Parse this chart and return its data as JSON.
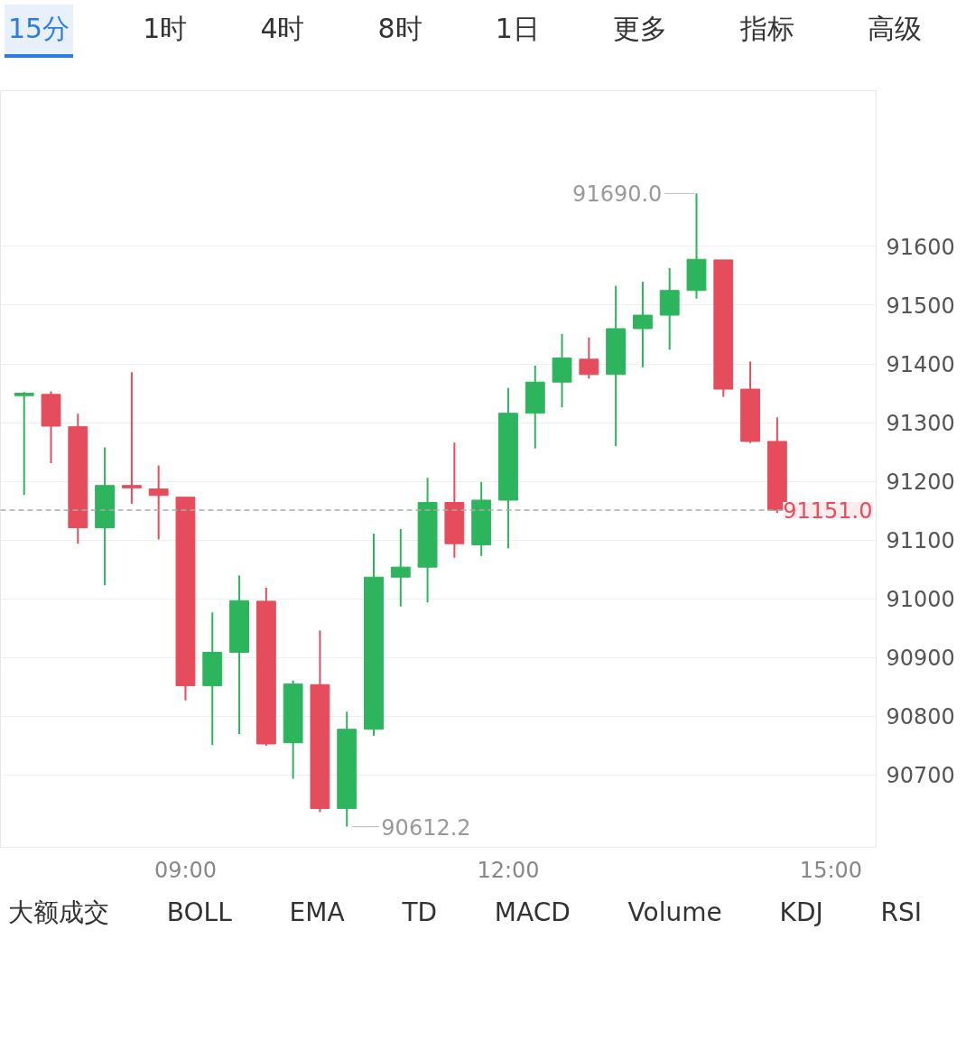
{
  "chart_data": {
    "type": "candlestick",
    "x": [
      7.5,
      7.75,
      8,
      8.25,
      8.5,
      8.75,
      9,
      9.25,
      9.5,
      9.75,
      10,
      10.25,
      10.5,
      10.75,
      11,
      11.25,
      11.5,
      11.75,
      12,
      12.25,
      12.5,
      12.75,
      13,
      13.25,
      13.5,
      13.75,
      14,
      14.25,
      14.5
    ],
    "ohlc": [
      [
        91346,
        91352,
        91177,
        91350
      ],
      [
        91348,
        91353,
        91231,
        91294
      ],
      [
        91293,
        91315,
        91094,
        91121
      ],
      [
        91121,
        91258,
        91023,
        91193
      ],
      [
        91193,
        91386,
        91162,
        91189
      ],
      [
        91187,
        91227,
        91101,
        91176
      ],
      [
        91173,
        91173,
        90827,
        90852
      ],
      [
        90852,
        90977,
        90751,
        90909
      ],
      [
        90909,
        91040,
        90770,
        90997
      ],
      [
        90996,
        91019,
        90750,
        90753
      ],
      [
        90755,
        90861,
        90694,
        90855
      ],
      [
        90854,
        90946,
        90637,
        90643
      ],
      [
        90643,
        90808,
        90612.2,
        90778
      ],
      [
        90778,
        91111,
        90767,
        91037
      ],
      [
        91037,
        91119,
        90987,
        91054
      ],
      [
        91054,
        91206,
        90994,
        91164
      ],
      [
        91164,
        91266,
        91070,
        91094
      ],
      [
        91092,
        91199,
        91073,
        91168
      ],
      [
        91168,
        91359,
        91086,
        91316
      ],
      [
        91316,
        91397,
        91256,
        91369
      ],
      [
        91369,
        91451,
        91326,
        91410
      ],
      [
        91408,
        91445,
        91375,
        91382
      ],
      [
        91382,
        91533,
        91260,
        91460
      ],
      [
        91460,
        91540,
        91394,
        91483
      ],
      [
        91483,
        91563,
        91424,
        91525
      ],
      [
        91525,
        91690.0,
        91511,
        91578
      ],
      [
        91577,
        91577,
        91344,
        91357
      ],
      [
        91357,
        91404,
        91265,
        91268
      ],
      [
        91268,
        91309,
        91146,
        91151.0
      ]
    ],
    "colors": [
      "#2db55d",
      "#e54d5c",
      "#e54d5c",
      "#2db55d",
      "#e54d5c",
      "#e54d5c",
      "#e54d5c",
      "#2db55d",
      "#2db55d",
      "#e54d5c",
      "#2db55d",
      "#e54d5c",
      "#2db55d",
      "#2db55d",
      "#2db55d",
      "#2db55d",
      "#e54d5c",
      "#2db55d",
      "#2db55d",
      "#2db55d",
      "#2db55d",
      "#e54d5c",
      "#2db55d",
      "#2db55d",
      "#2db55d",
      "#2db55d",
      "#e54d5c",
      "#e54d5c",
      "#e54d5c"
    ],
    "xlim": [
      7.28,
      15.42
    ],
    "xticks": [
      {
        "value": 9,
        "label": "09:00"
      },
      {
        "value": 12,
        "label": "12:00"
      },
      {
        "value": 15,
        "label": "15:00"
      }
    ],
    "ylim": [
      90577,
      91865
    ],
    "yticks": [
      90700,
      90800,
      90900,
      91000,
      91100,
      91200,
      91300,
      91400,
      91500,
      91600
    ],
    "grid": "y",
    "ref_lines": [
      {
        "axis": "y",
        "value": 91151.0,
        "label": "91151.0",
        "color": "#aaaaaa",
        "line_style": "dashed"
      }
    ],
    "annotations": [
      "15分 1时 4时 8时 1日 更多 指标 高级",
      "大额成交 BOLL EMA TD MACD Volume KDJ RSI",
      {
        "text": "91690.0",
        "x": 13.75,
        "y": 91690.0
      },
      {
        "text": "90612.2",
        "x": 10.5,
        "y": 90612.2
      }
    ]
  }
}
